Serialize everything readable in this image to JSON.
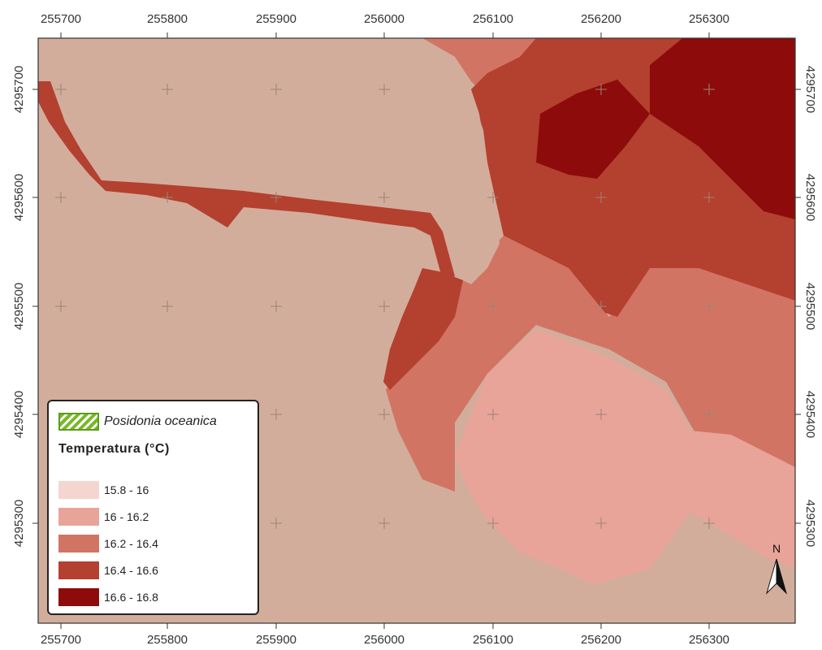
{
  "map": {
    "x_ticks": [
      "255700",
      "255800",
      "255900",
      "256000",
      "256100",
      "256200",
      "256300"
    ],
    "y_ticks": [
      "4295700",
      "4295600",
      "4295500",
      "4295400",
      "4295300"
    ],
    "north_label": "N"
  },
  "legend": {
    "species": "Posidonia oceanica",
    "title": "Temperatura (°C)",
    "classes": [
      {
        "label": "15.8 - 16",
        "color": "#f5d5d0"
      },
      {
        "label": "16 - 16.2",
        "color": "#e8a499"
      },
      {
        "label": "16.2 - 16.4",
        "color": "#d27464"
      },
      {
        "label": "16.4 - 16.6",
        "color": "#b4402f"
      },
      {
        "label": "16.6 - 16.8",
        "color": "#8e0b0b"
      }
    ]
  },
  "colors": {
    "land": "#d3ad9b",
    "sea_16_2": "#e8a499",
    "sea_16_4": "#d27464",
    "sea_16_6": "#b4402f",
    "sea_16_8": "#8e0b0b",
    "posidonia": "#7ab829"
  }
}
